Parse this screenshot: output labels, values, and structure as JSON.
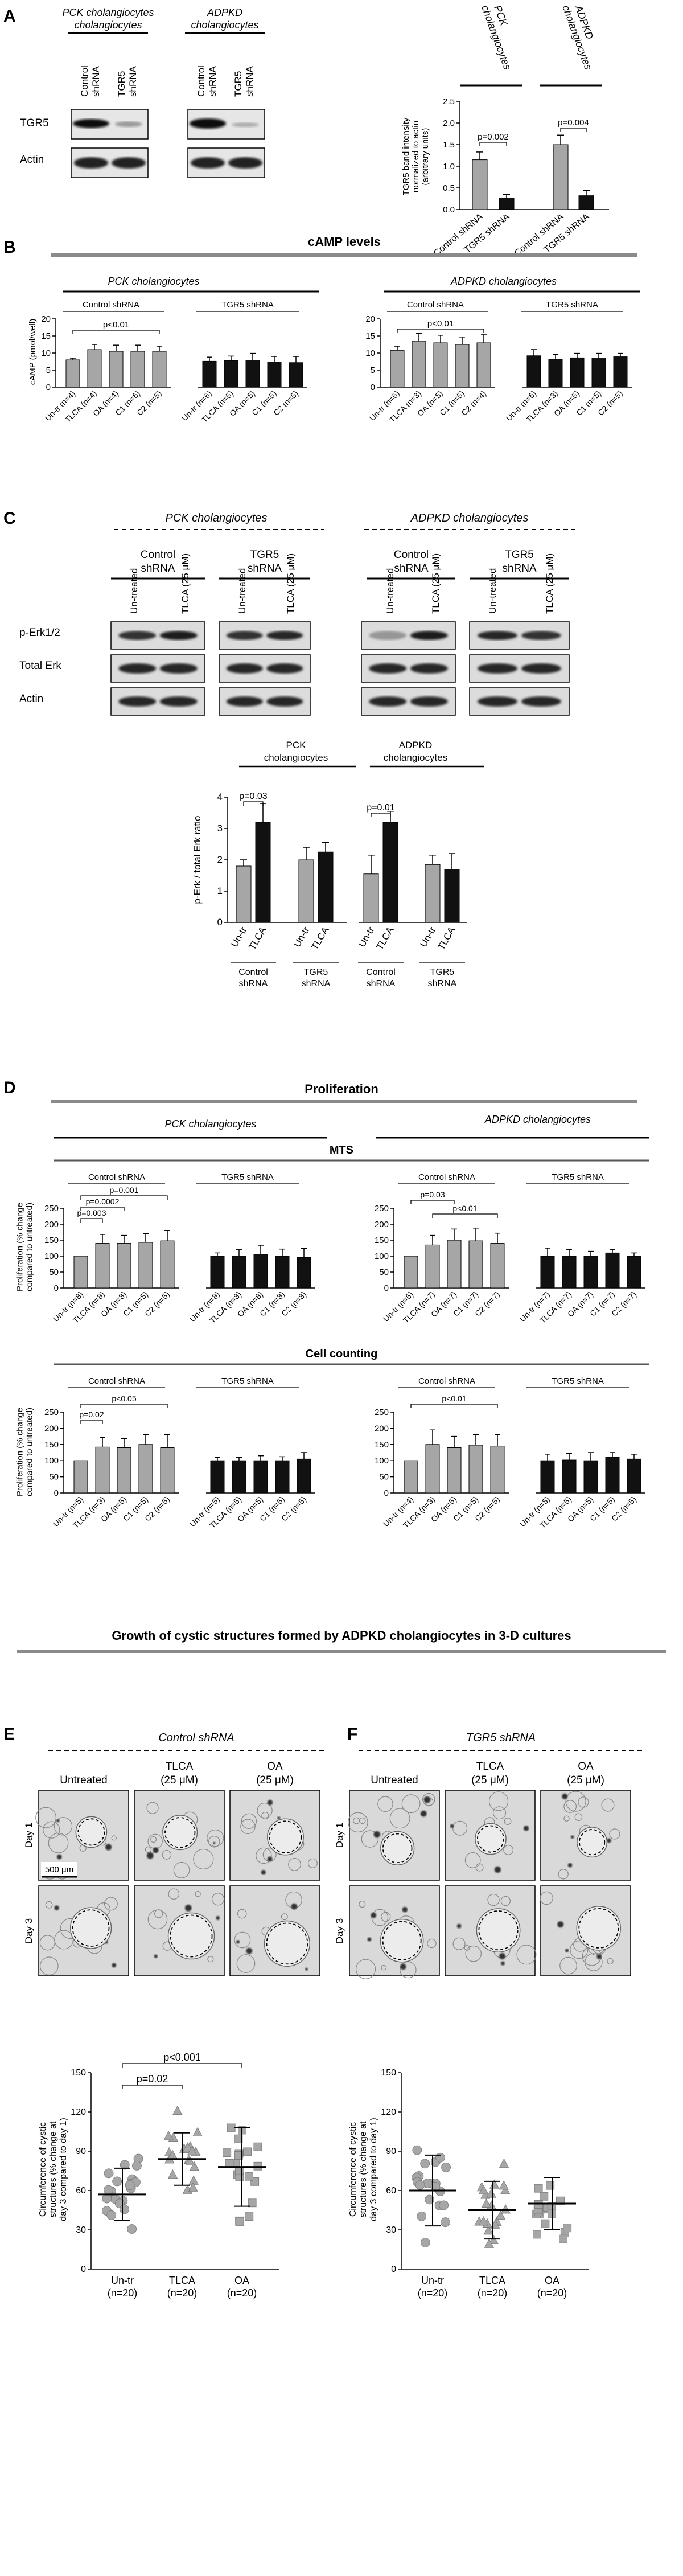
{
  "panelA": {
    "letter": "A",
    "group1": "PCK cholangiocytes",
    "group2": "ADPKD cholangiocytes",
    "lane_labels": [
      "Control shRNA",
      "TGR5 shRNA",
      "Control shRNA",
      "TGR5 shRNA"
    ],
    "row_labels": [
      "TGR5",
      "Actin"
    ],
    "chart_data": {
      "type": "bar",
      "groups": [
        "PCK cholangiocytes",
        "ADPKD cholangiocytes"
      ],
      "categories": [
        "Control shRNA",
        "TGR5 shRNA",
        "Control shRNA",
        "TGR5 shRNA"
      ],
      "values": [
        1.15,
        0.27,
        1.5,
        0.32
      ],
      "errors": [
        0.18,
        0.08,
        0.22,
        0.12
      ],
      "colors": [
        "#a6a6a6",
        "#111111",
        "#a6a6a6",
        "#111111"
      ],
      "ylabel": "TGR5 band intensity normalized to actin (arbitrary units)",
      "ylim": [
        0,
        2.5
      ],
      "yticks": [
        "0.0",
        "0.5",
        "1.0",
        "1.5",
        "2.0",
        "2.5"
      ],
      "annotations": [
        "p=0.002",
        "p=0.004"
      ]
    }
  },
  "panelB": {
    "letter": "B",
    "title": "cAMP levels",
    "group1": "PCK cholangiocytes",
    "group2": "ADPKD cholangiocytes",
    "control_label": "Control shRNA",
    "tgr5_label": "TGR5 shRNA",
    "chart_data": [
      {
        "type": "bar",
        "name": "PCK cholangiocytes",
        "categories": [
          "Un-tr (n=4)",
          "TLCA (n=4)",
          "OA (n=4)",
          "C1 (n=6)",
          "C2 (n=5)",
          "Un-tr (n=6)",
          "TLCA (n=5)",
          "OA (n=5)",
          "C1 (n=5)",
          "C2 (n=5)"
        ],
        "values": [
          8,
          11,
          10.5,
          10.5,
          10.5,
          7.6,
          7.8,
          7.9,
          7.4,
          7.2
        ],
        "errors": [
          0.5,
          1.5,
          1.8,
          1.8,
          1.5,
          1.2,
          1.3,
          2.0,
          1.6,
          1.8
        ],
        "ylabel": "cAMP (pmol/well)",
        "ylim": [
          0,
          20
        ],
        "yticks": [
          "0",
          "5",
          "10",
          "15",
          "20"
        ],
        "annotations": [
          "p<0.01"
        ]
      },
      {
        "type": "bar",
        "name": "ADPKD cholangiocytes",
        "categories": [
          "Un-tr (n=6)",
          "TLCA (n=3)",
          "OA (n=5)",
          "C1 (n=5)",
          "C2 (n=4)",
          "Un-tr (n=6)",
          "TLCA (n=3)",
          "OA (n=5)",
          "C1 (n=5)",
          "C2 (n=5)"
        ],
        "values": [
          10.8,
          13.5,
          13,
          12.5,
          13,
          9.2,
          8.2,
          8.6,
          8.4,
          8.9
        ],
        "errors": [
          1.2,
          2.3,
          2.2,
          2.2,
          2.5,
          1.8,
          1.4,
          1.3,
          1.5,
          1.0
        ],
        "ylim": [
          0,
          20
        ],
        "yticks": [
          "0",
          "5",
          "10",
          "15",
          "20"
        ],
        "annotations": [
          "p<0.01"
        ]
      }
    ]
  },
  "panelC": {
    "letter": "C",
    "group1": "PCK cholangiocytes",
    "group2": "ADPKD cholangiocytes",
    "control_label": "Control shRNA",
    "tgr5_label": "TGR5 shRNA",
    "lane_labels": [
      "Un-treated",
      "TLCA (25 μM)"
    ],
    "row_labels": [
      "p-Erk1/2",
      "Total Erk",
      "Actin"
    ],
    "chart_data": {
      "type": "bar",
      "groups": [
        "PCK cholangiocytes",
        "ADPKD cholangiocytes"
      ],
      "categories": [
        "Un-tr",
        "TLCA",
        "Un-tr",
        "TLCA",
        "Un-tr",
        "TLCA",
        "Un-tr",
        "TLCA"
      ],
      "subgroups": [
        "Control shRNA",
        "TGR5 shRNA",
        "Control shRNA",
        "TGR5 shRNA"
      ],
      "values": [
        1.8,
        3.2,
        2.0,
        2.25,
        1.55,
        3.2,
        1.85,
        1.7
      ],
      "errors": [
        0.2,
        0.6,
        0.4,
        0.3,
        0.6,
        0.35,
        0.3,
        0.5
      ],
      "ylabel": "p-Erk / total Erk ratio",
      "ylim": [
        0,
        4
      ],
      "yticks": [
        "0",
        "1",
        "2",
        "3",
        "4"
      ],
      "annotations": [
        "p=0.03",
        "p=0.01"
      ]
    }
  },
  "panelD": {
    "letter": "D",
    "title": "Proliferation",
    "group1": "PCK cholangiocytes",
    "group2": "ADPKD cholangiocytes",
    "mts_title": "MTS",
    "cell_title": "Cell counting",
    "control_label": "Control shRNA",
    "tgr5_label": "TGR5 shRNA",
    "chart_data": [
      {
        "type": "bar",
        "name": "MTS PCK",
        "categories": [
          "Un-tr (n=8)",
          "TLCA (n=8)",
          "OA (n=8)",
          "C1 (n=5)",
          "C2 (n=5)",
          "Un-tr (n=8)",
          "TLCA (n=8)",
          "OA (n=8)",
          "C1 (n=8)",
          "C2 (n=8)"
        ],
        "values": [
          100,
          140,
          140,
          143,
          148,
          100,
          100,
          106,
          100,
          96
        ],
        "errors": [
          0,
          28,
          25,
          28,
          32,
          10,
          20,
          28,
          22,
          28
        ],
        "ylabel": "Proliferation (% change compared to untreated)",
        "ylim": [
          0,
          250
        ],
        "yticks": [
          "0",
          "50",
          "100",
          "150",
          "200",
          "250"
        ],
        "annotations": [
          "p=0.001",
          "p=0.0002",
          "p=0.003"
        ]
      },
      {
        "type": "bar",
        "name": "MTS ADPKD",
        "categories": [
          "Un-tr (n=6)",
          "TLCA (n=7)",
          "OA (n=7)",
          "C1 (n=7)",
          "C2 (n=7)",
          "Un-tr (n=7)",
          "TLCA (n=7)",
          "OA (n=7)",
          "C1 (n=7)",
          "C2 (n=7)"
        ],
        "values": [
          100,
          135,
          150,
          148,
          140,
          100,
          100,
          100,
          110,
          100
        ],
        "errors": [
          0,
          30,
          35,
          40,
          32,
          25,
          20,
          15,
          10,
          10
        ],
        "ylim": [
          0,
          250
        ],
        "yticks": [
          "0",
          "50",
          "100",
          "150",
          "200",
          "250"
        ],
        "annotations": [
          "p=0.03",
          "p<0.01"
        ]
      },
      {
        "type": "bar",
        "name": "Cell counting PCK",
        "categories": [
          "Un-tr (n=5)",
          "TLCA (n=3)",
          "OA (n=5)",
          "C1 (n=5)",
          "C2 (n=5)",
          "Un-tr (n=5)",
          "TLCA (n=5)",
          "OA (n=5)",
          "C1 (n=5)",
          "C2 (n=5)"
        ],
        "values": [
          100,
          142,
          140,
          150,
          140,
          100,
          100,
          100,
          100,
          105
        ],
        "errors": [
          0,
          30,
          28,
          30,
          40,
          10,
          10,
          15,
          12,
          20
        ],
        "ylabel": "Proliferation (% change compared to untreated)",
        "ylim": [
          0,
          250
        ],
        "yticks": [
          "0",
          "50",
          "100",
          "150",
          "200",
          "250"
        ],
        "annotations": [
          "p<0.05",
          "p=0.02"
        ]
      },
      {
        "type": "bar",
        "name": "Cell counting ADPKD",
        "categories": [
          "Un-tr (n=4)",
          "TLCA (n=3)",
          "OA (n=5)",
          "C1 (n=5)",
          "C2 (n=5)",
          "Un-tr (n=5)",
          "TLCA (n=5)",
          "OA (n=5)",
          "C1 (n=5)",
          "C2 (n=5)"
        ],
        "values": [
          100,
          150,
          140,
          148,
          145,
          100,
          102,
          100,
          110,
          105
        ],
        "errors": [
          0,
          45,
          35,
          32,
          35,
          20,
          20,
          25,
          15,
          15
        ],
        "ylim": [
          0,
          250
        ],
        "yticks": [
          "0",
          "50",
          "100",
          "150",
          "200",
          "250"
        ],
        "annotations": [
          "p<0.01"
        ]
      }
    ]
  },
  "growth_title": "Growth of cystic structures formed by ADPKD cholangiocytes in 3-D cultures",
  "panelE": {
    "letter": "E",
    "subtitle": "Control shRNA",
    "col_labels": [
      "Untreated",
      "TLCA (25 μM)",
      "OA (25 μM)"
    ],
    "row_labels": [
      "Day 1",
      "Day 3"
    ],
    "scale_label": "500 μm",
    "chart_data": {
      "type": "scatter",
      "categories": [
        "Un-tr (n=20)",
        "TLCA (n=20)",
        "OA (n=20)"
      ],
      "means": [
        57,
        84,
        78
      ],
      "sd": [
        20,
        20,
        30
      ],
      "ylabel": "Circumference of cystic structures (% change at day 3 compared to day 1)",
      "ylim": [
        0,
        150
      ],
      "yticks": [
        "0",
        "30",
        "60",
        "90",
        "120",
        "150"
      ],
      "annotations": [
        "p=0.02",
        "p<0.001"
      ]
    }
  },
  "panelF": {
    "letter": "F",
    "subtitle": "TGR5 shRNA",
    "col_labels": [
      "Untreated",
      "TLCA (25 μM)",
      "OA (25 μM)"
    ],
    "row_labels": [
      "Day 1",
      "Day 3"
    ],
    "chart_data": {
      "type": "scatter",
      "categories": [
        "Un-tr (n=20)",
        "TLCA (n=20)",
        "OA (n=20)"
      ],
      "means": [
        60,
        45,
        50
      ],
      "sd": [
        27,
        22,
        20
      ],
      "ylabel": "Circumference of cystic structures (% change at day 3 compared to day 1)",
      "ylim": [
        0,
        150
      ],
      "yticks": [
        "0",
        "30",
        "60",
        "90",
        "120",
        "150"
      ]
    }
  }
}
